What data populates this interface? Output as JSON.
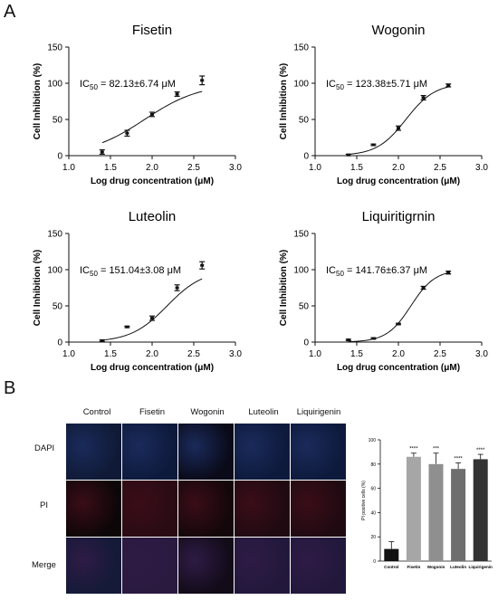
{
  "panels": {
    "a": "A",
    "b": "B"
  },
  "colors": {
    "axis": "#111111",
    "bar_control": "#111111",
    "bar_fisetin": "#a6a6a6",
    "bar_wogonin": "#8f8f8f",
    "bar_luteolin": "#6e6e6e",
    "bar_liquiritigenin": "#333333",
    "dapi": "#1a2a5a",
    "pi": "#3a0d18",
    "merge": "#2e1b45"
  },
  "microscopy": {
    "columns": [
      "Control",
      "Fisetin",
      "Wogonin",
      "Luteolin",
      "Liquirigenin"
    ],
    "rows": [
      "DAPI",
      "PI",
      "Merge"
    ]
  },
  "chart_data": [
    {
      "type": "scatter",
      "title": "Fisetin",
      "annotation": {
        "prefix": "IC",
        "sub": "50",
        "suffix": " = 82.13±6.74 μM"
      },
      "xlabel": "Log drug concentration (μM)",
      "ylabel": "Cell Inhibition (%)",
      "xlim": [
        1.0,
        3.0
      ],
      "ylim": [
        0,
        150
      ],
      "xticks": [
        "1.0",
        "1.5",
        "2.0",
        "2.5",
        "3.0"
      ],
      "yticks": [
        "0",
        "50",
        "100",
        "150"
      ],
      "x": [
        1.4,
        1.7,
        2.0,
        2.3,
        2.6
      ],
      "y": [
        5,
        31,
        57,
        85,
        104
      ],
      "error": [
        3,
        4,
        3,
        3,
        6
      ],
      "fit": {
        "bottom": 0,
        "top": 100,
        "logIC50": 1.91,
        "hill": 1.3
      }
    },
    {
      "type": "scatter",
      "title": "Wogonin",
      "annotation": {
        "prefix": "IC",
        "sub": "50",
        "suffix": " = 123.38±5.71 μM"
      },
      "xlabel": "Log drug concentration (μM)",
      "ylabel": "Cell Inhibition (%)",
      "xlim": [
        1.0,
        3.0
      ],
      "ylim": [
        0,
        150
      ],
      "xticks": [
        "1.0",
        "1.5",
        "2.0",
        "2.5",
        "3.0"
      ],
      "yticks": [
        "0",
        "50",
        "100",
        "150"
      ],
      "x": [
        1.4,
        1.7,
        2.0,
        2.3,
        2.6
      ],
      "y": [
        1,
        15,
        38,
        80,
        97
      ],
      "error": [
        1,
        1,
        3,
        3,
        2
      ],
      "fit": {
        "bottom": 0,
        "top": 100,
        "logIC50": 2.09,
        "hill": 2.5
      }
    },
    {
      "type": "scatter",
      "title": "Luteolin",
      "annotation": {
        "prefix": "IC",
        "sub": "50",
        "suffix": " = 151.04±3.08 μM"
      },
      "xlabel": "Log drug concentration (μM)",
      "ylabel": "Cell Inhibition (%)",
      "xlim": [
        1.0,
        3.0
      ],
      "ylim": [
        0,
        150
      ],
      "xticks": [
        "1.0",
        "1.5",
        "2.0",
        "2.5",
        "3.0"
      ],
      "yticks": [
        "0",
        "50",
        "100",
        "150"
      ],
      "x": [
        1.4,
        1.7,
        2.0,
        2.3,
        2.6
      ],
      "y": [
        2,
        21,
        33,
        75,
        106
      ],
      "error": [
        1,
        1,
        3,
        4,
        5
      ],
      "fit": {
        "bottom": 0,
        "top": 100,
        "logIC50": 2.18,
        "hill": 2.0
      }
    },
    {
      "type": "scatter",
      "title": "Liquiritigrnin",
      "annotation": {
        "prefix": "IC",
        "sub": "50",
        "suffix": " = 141.76±6.37 μM"
      },
      "xlabel": "Log drug concentration (μM)",
      "ylabel": "Cell Inhibition (%)",
      "xlim": [
        1.0,
        3.0
      ],
      "ylim": [
        0,
        150
      ],
      "xticks": [
        "1.0",
        "1.5",
        "2.0",
        "2.5",
        "3.0"
      ],
      "yticks": [
        "0",
        "50",
        "100",
        "150"
      ],
      "x": [
        1.4,
        1.7,
        2.0,
        2.3,
        2.6
      ],
      "y": [
        3,
        5,
        25,
        75,
        96
      ],
      "error": [
        1,
        1,
        1,
        2,
        2
      ],
      "fit": {
        "bottom": 0,
        "top": 100,
        "logIC50": 2.15,
        "hill": 3.0
      }
    },
    {
      "type": "bar",
      "categories": [
        "Control",
        "Fisetin",
        "Wogonin",
        "Luteolin",
        "Liquirigenin"
      ],
      "values": [
        10,
        86,
        80,
        76,
        84
      ],
      "error": [
        6,
        3,
        9,
        5,
        4
      ],
      "significance": [
        "",
        "****",
        "***",
        "****",
        "****"
      ],
      "ylabel": "PI positive cells (%)",
      "ylim": [
        0,
        100
      ],
      "yticks": [
        "0",
        "20",
        "40",
        "60",
        "80",
        "100"
      ]
    }
  ]
}
